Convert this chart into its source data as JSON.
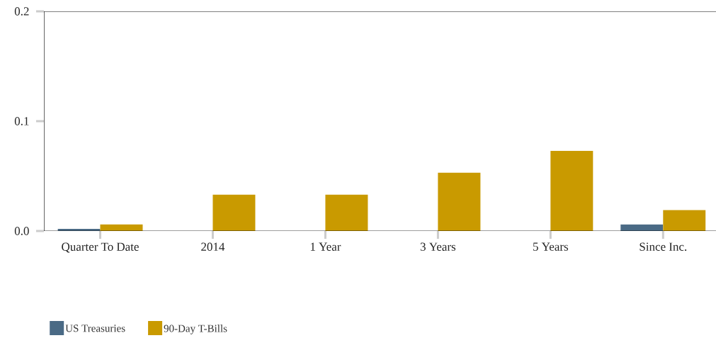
{
  "chart_data": {
    "type": "bar",
    "categories": [
      "Quarter To Date",
      "2014",
      "1 Year",
      "3 Years",
      "5 Years",
      "Since Inc."
    ],
    "series": [
      {
        "name": "US Treasuries",
        "color": "#4a6a85",
        "values": [
          0.002,
          null,
          null,
          null,
          null,
          0.006
        ]
      },
      {
        "name": "90-Day T-Bills",
        "color": "#c99a00",
        "values": [
          0.006,
          0.033,
          0.033,
          0.053,
          0.073,
          0.019
        ]
      }
    ],
    "ylim": [
      0,
      0.2
    ],
    "yticks": [
      {
        "value": 0,
        "label": "0.0"
      },
      {
        "value": 0.1,
        "label": "0.1"
      },
      {
        "value": 0.2,
        "label": "0.2"
      }
    ],
    "grid": false,
    "legend": "bottom left"
  }
}
